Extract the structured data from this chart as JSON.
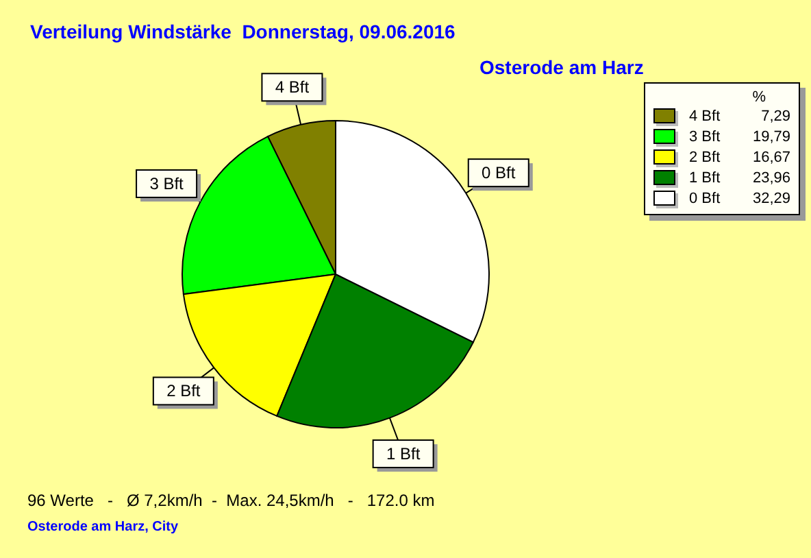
{
  "chart_data": {
    "type": "pie",
    "title": "Verteilung Windstärke  Donnerstag, 09.06.2016",
    "subtitle": "Osterode am Harz",
    "categories": [
      "4 Bft",
      "3 Bft",
      "2 Bft",
      "1 Bft",
      "0 Bft"
    ],
    "values": [
      7.29,
      19.79,
      16.67,
      23.96,
      32.29
    ],
    "value_labels": [
      "7,29",
      "19,79",
      "16,67",
      "23,96",
      "32,29"
    ],
    "colors": [
      "#808000",
      "#00ff00",
      "#ffff00",
      "#008000",
      "#ffffff"
    ],
    "legend": "top right",
    "legend_title": "%",
    "annotations": [
      "96 Werte   -   Ø 7,2km/h  -  Max. 24,5km/h   -   172.0 km",
      "Osterode am Harz, City"
    ]
  }
}
